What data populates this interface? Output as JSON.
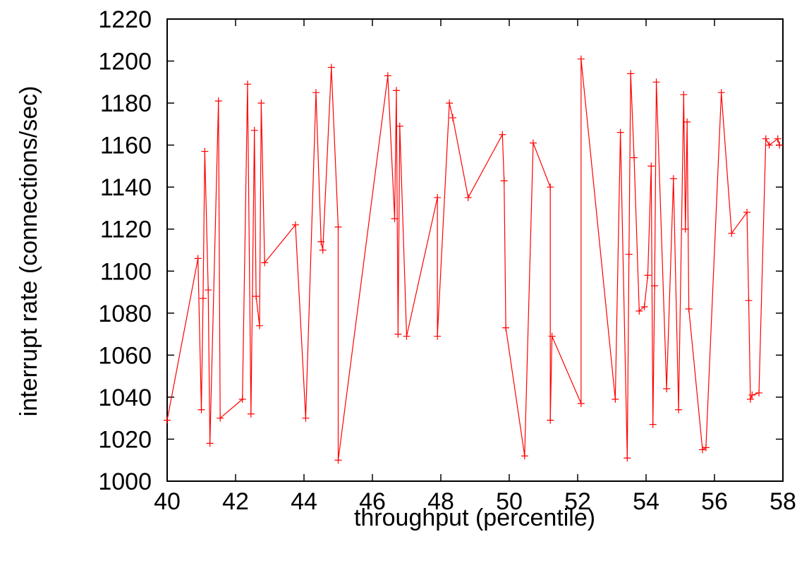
{
  "chart_data": {
    "type": "line",
    "title": "",
    "xlabel": "throughput (percentile)",
    "ylabel": "interrupt rate (connections/sec)",
    "xlim": [
      40,
      58
    ],
    "ylim": [
      1000,
      1220
    ],
    "xticks": [
      40,
      42,
      44,
      46,
      48,
      50,
      52,
      54,
      56,
      58
    ],
    "yticks": [
      1000,
      1020,
      1040,
      1060,
      1080,
      1100,
      1120,
      1140,
      1160,
      1180,
      1200,
      1220
    ],
    "grid": false,
    "legend": "none",
    "series": [
      {
        "color": "#ff0000",
        "marker": "plus",
        "x": [
          40.0,
          40.9,
          41.0,
          41.05,
          41.1,
          41.2,
          41.25,
          41.5,
          41.55,
          42.2,
          42.35,
          42.45,
          42.55,
          42.6,
          42.7,
          42.75,
          42.85,
          43.75,
          44.05,
          44.35,
          44.5,
          44.55,
          44.8,
          45.0,
          45.0,
          46.45,
          46.65,
          46.7,
          46.75,
          46.8,
          47.0,
          47.9,
          47.9,
          48.25,
          48.35,
          48.8,
          49.8,
          49.85,
          49.9,
          50.45,
          50.7,
          51.2,
          51.2,
          51.25,
          52.1,
          52.1,
          53.1,
          53.25,
          53.45,
          53.5,
          53.55,
          53.65,
          53.8,
          53.95,
          54.05,
          54.15,
          54.2,
          54.25,
          54.3,
          54.6,
          54.8,
          54.95,
          55.1,
          55.15,
          55.2,
          55.25,
          55.65,
          55.75,
          56.2,
          56.5,
          56.95,
          57.0,
          57.05,
          57.1,
          57.3,
          57.5,
          57.6,
          57.85,
          57.9
        ],
        "y": [
          1029,
          1106,
          1034,
          1087,
          1157,
          1091,
          1018,
          1181,
          1030,
          1039,
          1189,
          1032,
          1167,
          1088,
          1074,
          1180,
          1104,
          1122,
          1030,
          1185,
          1114,
          1110,
          1197,
          1121,
          1010,
          1193,
          1125,
          1186,
          1070,
          1169,
          1069,
          1135,
          1069,
          1180,
          1173,
          1135,
          1165,
          1143,
          1073,
          1012,
          1161,
          1140,
          1029,
          1069,
          1037,
          1201,
          1039,
          1166,
          1011,
          1108,
          1194,
          1154,
          1081,
          1083,
          1098,
          1150,
          1027,
          1093,
          1190,
          1044,
          1144,
          1034,
          1184,
          1120,
          1171,
          1082,
          1015,
          1016,
          1185,
          1118,
          1128,
          1086,
          1039,
          1041,
          1042,
          1163,
          1160,
          1163,
          1160
        ]
      }
    ]
  }
}
